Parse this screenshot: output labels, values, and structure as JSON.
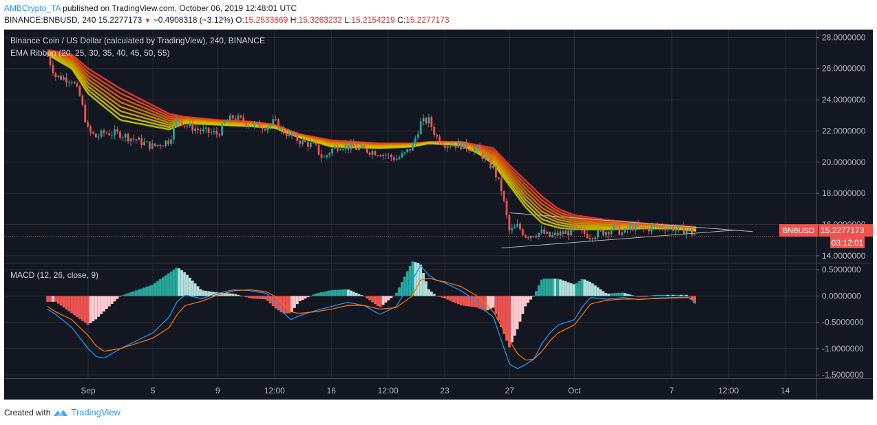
{
  "header": {
    "author": "AMBCrypto_TA",
    "published_text": "published on TradingView.com, October 06, 2019 12:48:01 UTC",
    "symbol": "BINANCE:BNBUSD, 240",
    "last": "15.2277173",
    "change": "−0.4908318 (−3.12%)",
    "o_label": "O:",
    "o": "15.2533869",
    "h_label": "H:",
    "h": "15.3263232",
    "l_label": "L:",
    "l": "15.2154219",
    "c_label": "C:",
    "c": "15.2277173",
    "change_icon": "triangle-down-icon"
  },
  "pane_labels": {
    "main_title": "Binance Coin / US Dollar (calculated by TradingView), 240, BINANCE",
    "ema": "EMA Ribbon (20, 25, 30, 35, 40, 45, 50, 55)",
    "macd": "MACD (12, 26, close, 9)"
  },
  "price_badge": {
    "symbol": "BNBUSD",
    "price": "15.2277173",
    "countdown": "03:12:01"
  },
  "footer": {
    "created_with": "Created with",
    "brand": "TradingView",
    "logo_icon": "tradingview-logo-icon"
  },
  "colors": {
    "background": "#131722",
    "grid": "#2a2e39",
    "text": "#b2b5be",
    "candle_up": "#26a69a",
    "candle_down": "#ef5350",
    "ema_fast": "#d4d400",
    "ema_slow": "#e53935",
    "macd_line": "#2196f3",
    "signal_line": "#ff6d00",
    "hist_up_strong": "#26a69a",
    "hist_up_weak": "#b2dfdb",
    "hist_down_strong": "#ef5350",
    "hist_down_weak": "#ffcdd2",
    "triangle_lines": "#b2b5be",
    "price_line": "#ef5350"
  },
  "chart_data": [
    {
      "type": "candlestick",
      "title": "Binance Coin / US Dollar (calculated by TradingView), 240, BINANCE",
      "timeframe": "240",
      "x_ticks": [
        "Sep",
        "5",
        "9",
        "12:00",
        "16",
        "12:00",
        "23",
        "27",
        "Oct",
        "7",
        "12:00",
        "14"
      ],
      "x_tick_dates": [
        "2019-09-01",
        "2019-09-05",
        "2019-09-09",
        "2019-09-12T12:00",
        "2019-09-16",
        "2019-09-19T12:00",
        "2019-09-23",
        "2019-09-27",
        "2019-10-01",
        "2019-10-07",
        "2019-10-10T12:00",
        "2019-10-14"
      ],
      "ylim": [
        13.6,
        28.5
      ],
      "y_ticks": [
        "28.0000000",
        "26.0000000",
        "24.0000000",
        "22.0000000",
        "20.0000000",
        "18.0000000",
        "16.0000000",
        "14.0000000"
      ],
      "close_path": [
        [
          "2019-08-29T12:00",
          26.8
        ],
        [
          "2019-08-30",
          25.5
        ],
        [
          "2019-08-31",
          25.3
        ],
        [
          "2019-08-31T12:00",
          24.2
        ],
        [
          "2019-09-01",
          22.0
        ],
        [
          "2019-09-01T12:00",
          21.6
        ],
        [
          "2019-09-02",
          21.9
        ],
        [
          "2019-09-03",
          21.8
        ],
        [
          "2019-09-04",
          21.4
        ],
        [
          "2019-09-05",
          21.0
        ],
        [
          "2019-09-06",
          21.4
        ],
        [
          "2019-09-06T12:00",
          22.8
        ],
        [
          "2019-09-07",
          22.4
        ],
        [
          "2019-09-08",
          22.0
        ],
        [
          "2019-09-09",
          21.8
        ],
        [
          "2019-09-09T12:00",
          22.6
        ],
        [
          "2019-09-10",
          22.9
        ],
        [
          "2019-09-11",
          22.4
        ],
        [
          "2019-09-12",
          22.3
        ],
        [
          "2019-09-12T12:00",
          22.6
        ],
        [
          "2019-09-13",
          22.0
        ],
        [
          "2019-09-14",
          21.4
        ],
        [
          "2019-09-15",
          21.0
        ],
        [
          "2019-09-15T12:00",
          20.2
        ],
        [
          "2019-09-16",
          20.8
        ],
        [
          "2019-09-16T12:00",
          21.1
        ],
        [
          "2019-09-17",
          21.0
        ],
        [
          "2019-09-18",
          20.8
        ],
        [
          "2019-09-19",
          20.6
        ],
        [
          "2019-09-20",
          20.2
        ],
        [
          "2019-09-20T12:00",
          20.5
        ],
        [
          "2019-09-21",
          21.0
        ],
        [
          "2019-09-21T12:00",
          22.5
        ],
        [
          "2019-09-22",
          22.7
        ],
        [
          "2019-09-22T12:00",
          21.6
        ],
        [
          "2019-09-23",
          21.2
        ],
        [
          "2019-09-24",
          21.1
        ],
        [
          "2019-09-25",
          20.8
        ],
        [
          "2019-09-25T12:00",
          20.2
        ],
        [
          "2019-09-26",
          19.6
        ],
        [
          "2019-09-26T12:00",
          18.2
        ],
        [
          "2019-09-27",
          15.5
        ],
        [
          "2019-09-27T12:00",
          15.9
        ],
        [
          "2019-09-28",
          15.3
        ],
        [
          "2019-09-29",
          15.5
        ],
        [
          "2019-09-29T12:00",
          15.2
        ],
        [
          "2019-09-30",
          15.4
        ],
        [
          "2019-10-01",
          15.6
        ],
        [
          "2019-10-02",
          15.3
        ],
        [
          "2019-10-03",
          15.6
        ],
        [
          "2019-10-03T12:00",
          15.8
        ],
        [
          "2019-10-04",
          15.4
        ],
        [
          "2019-10-04T12:00",
          15.9
        ],
        [
          "2019-10-05",
          15.7
        ],
        [
          "2019-10-06",
          15.8
        ],
        [
          "2019-10-06T12:00",
          15.9
        ],
        [
          "2019-10-07",
          15.8
        ],
        [
          "2019-10-07T12:00",
          15.7
        ],
        [
          "2019-10-08",
          15.6
        ],
        [
          "2019-10-08T12:00",
          15.3
        ]
      ],
      "ema_ribbon": {
        "periods": [
          20,
          25,
          30,
          35,
          40,
          45,
          50,
          55
        ],
        "fast_path": [
          [
            "2019-08-29T12:00",
            26.9
          ],
          [
            "2019-08-31",
            26.0
          ],
          [
            "2019-09-01",
            24.4
          ],
          [
            "2019-09-03",
            22.7
          ],
          [
            "2019-09-06",
            22.1
          ],
          [
            "2019-09-07",
            22.5
          ],
          [
            "2019-09-09",
            22.4
          ],
          [
            "2019-09-11",
            22.3
          ],
          [
            "2019-09-12T12:00",
            22.2
          ],
          [
            "2019-09-14",
            21.6
          ],
          [
            "2019-09-16",
            21.0
          ],
          [
            "2019-09-19",
            20.9
          ],
          [
            "2019-09-21",
            21.0
          ],
          [
            "2019-09-22",
            21.2
          ],
          [
            "2019-09-24",
            21.1
          ],
          [
            "2019-09-25",
            20.6
          ],
          [
            "2019-09-26",
            19.9
          ],
          [
            "2019-09-27",
            18.5
          ],
          [
            "2019-09-28",
            17.1
          ],
          [
            "2019-09-29",
            16.1
          ],
          [
            "2019-09-30",
            15.8
          ],
          [
            "2019-10-01",
            15.7
          ],
          [
            "2019-10-03",
            15.7
          ],
          [
            "2019-10-05",
            15.75
          ],
          [
            "2019-10-07",
            15.75
          ],
          [
            "2019-10-08T12:00",
            15.6
          ]
        ],
        "slow_path": [
          [
            "2019-08-29T12:00",
            27.2
          ],
          [
            "2019-08-31",
            26.9
          ],
          [
            "2019-09-01",
            26.0
          ],
          [
            "2019-09-03",
            24.7
          ],
          [
            "2019-09-06",
            23.1
          ],
          [
            "2019-09-07",
            22.9
          ],
          [
            "2019-09-09",
            22.7
          ],
          [
            "2019-09-11",
            22.6
          ],
          [
            "2019-09-12T12:00",
            22.4
          ],
          [
            "2019-09-14",
            21.8
          ],
          [
            "2019-09-16",
            21.4
          ],
          [
            "2019-09-19",
            21.2
          ],
          [
            "2019-09-21",
            21.2
          ],
          [
            "2019-09-22",
            21.3
          ],
          [
            "2019-09-24",
            21.3
          ],
          [
            "2019-09-25",
            21.1
          ],
          [
            "2019-09-26",
            20.9
          ],
          [
            "2019-09-27",
            19.8
          ],
          [
            "2019-09-28",
            18.8
          ],
          [
            "2019-09-29",
            17.8
          ],
          [
            "2019-09-30",
            17.0
          ],
          [
            "2019-10-01",
            16.6
          ],
          [
            "2019-10-03",
            16.3
          ],
          [
            "2019-10-05",
            16.1
          ],
          [
            "2019-10-07",
            15.95
          ],
          [
            "2019-10-08T12:00",
            15.85
          ]
        ]
      },
      "triangle": {
        "upper": [
          [
            "2019-09-27",
            16.75
          ],
          [
            "2019-10-12",
            15.55
          ]
        ],
        "lower": [
          [
            "2019-09-26T12:00",
            14.5
          ],
          [
            "2019-10-11",
            15.65
          ]
        ]
      },
      "last_price": 15.2277173
    },
    {
      "type": "macd",
      "title": "MACD (12, 26, close, 9)",
      "ylim": [
        -1.55,
        0.62
      ],
      "y_ticks": [
        "0.5000000",
        "0.0000000",
        "-0.5000000",
        "-1.0000000",
        "-1.5000000"
      ],
      "macd": [
        [
          "2019-08-29T12:00",
          -0.25
        ],
        [
          "2019-08-30",
          -0.35
        ],
        [
          "2019-08-31",
          -0.6
        ],
        [
          "2019-09-01",
          -1.0
        ],
        [
          "2019-09-01T12:00",
          -1.15
        ],
        [
          "2019-09-02",
          -1.18
        ],
        [
          "2019-09-03",
          -1.0
        ],
        [
          "2019-09-04",
          -0.85
        ],
        [
          "2019-09-05",
          -0.7
        ],
        [
          "2019-09-06",
          -0.4
        ],
        [
          "2019-09-06T12:00",
          -0.1
        ],
        [
          "2019-09-07",
          0.02
        ],
        [
          "2019-09-08",
          -0.05
        ],
        [
          "2019-09-09",
          0.05
        ],
        [
          "2019-09-10",
          0.12
        ],
        [
          "2019-09-11",
          0.1
        ],
        [
          "2019-09-12",
          0.05
        ],
        [
          "2019-09-12T12:00",
          -0.1
        ],
        [
          "2019-09-13",
          -0.3
        ],
        [
          "2019-09-13T12:00",
          -0.45
        ],
        [
          "2019-09-14",
          -0.38
        ],
        [
          "2019-09-15",
          -0.28
        ],
        [
          "2019-09-16",
          -0.2
        ],
        [
          "2019-09-17",
          -0.12
        ],
        [
          "2019-09-18",
          -0.18
        ],
        [
          "2019-09-19",
          -0.35
        ],
        [
          "2019-09-20",
          -0.2
        ],
        [
          "2019-09-21",
          0.3
        ],
        [
          "2019-09-21T12:00",
          0.58
        ],
        [
          "2019-09-22",
          0.4
        ],
        [
          "2019-09-22T12:00",
          0.3
        ],
        [
          "2019-09-23",
          0.25
        ],
        [
          "2019-09-24",
          0.1
        ],
        [
          "2019-09-25",
          -0.1
        ],
        [
          "2019-09-25T12:00",
          -0.28
        ],
        [
          "2019-09-26",
          -0.4
        ],
        [
          "2019-09-27",
          -1.3
        ],
        [
          "2019-09-27T12:00",
          -1.38
        ],
        [
          "2019-09-28",
          -1.3
        ],
        [
          "2019-09-28T12:00",
          -1.2
        ],
        [
          "2019-09-29",
          -0.9
        ],
        [
          "2019-09-29T12:00",
          -0.7
        ],
        [
          "2019-09-30",
          -0.55
        ],
        [
          "2019-10-01",
          -0.45
        ],
        [
          "2019-10-01T12:00",
          -0.2
        ],
        [
          "2019-10-02",
          -0.03
        ],
        [
          "2019-10-03",
          -0.06
        ],
        [
          "2019-10-04",
          -0.03
        ],
        [
          "2019-10-05",
          -0.07
        ],
        [
          "2019-10-06",
          -0.04
        ],
        [
          "2019-10-07",
          -0.03
        ],
        [
          "2019-10-08",
          -0.02
        ],
        [
          "2019-10-08T12:00",
          -0.14
        ]
      ],
      "signal": [
        [
          "2019-08-29T12:00",
          -0.2
        ],
        [
          "2019-08-30",
          -0.3
        ],
        [
          "2019-08-31",
          -0.45
        ],
        [
          "2019-09-01",
          -0.75
        ],
        [
          "2019-09-01T12:00",
          -0.95
        ],
        [
          "2019-09-02",
          -1.05
        ],
        [
          "2019-09-03",
          -1.0
        ],
        [
          "2019-09-04",
          -0.9
        ],
        [
          "2019-09-05",
          -0.8
        ],
        [
          "2019-09-06",
          -0.6
        ],
        [
          "2019-09-06T12:00",
          -0.35
        ],
        [
          "2019-09-07",
          -0.18
        ],
        [
          "2019-09-08",
          -0.1
        ],
        [
          "2019-09-09",
          0.02
        ],
        [
          "2019-09-10",
          0.1
        ],
        [
          "2019-09-11",
          0.12
        ],
        [
          "2019-09-12",
          0.08
        ],
        [
          "2019-09-12T12:00",
          0.0
        ],
        [
          "2019-09-13",
          -0.15
        ],
        [
          "2019-09-13T12:00",
          -0.3
        ],
        [
          "2019-09-14",
          -0.33
        ],
        [
          "2019-09-15",
          -0.3
        ],
        [
          "2019-09-16",
          -0.25
        ],
        [
          "2019-09-17",
          -0.18
        ],
        [
          "2019-09-18",
          -0.18
        ],
        [
          "2019-09-19",
          -0.25
        ],
        [
          "2019-09-20",
          -0.22
        ],
        [
          "2019-09-21",
          0.0
        ],
        [
          "2019-09-21T12:00",
          0.3
        ],
        [
          "2019-09-22",
          0.34
        ],
        [
          "2019-09-22T12:00",
          0.3
        ],
        [
          "2019-09-23",
          0.27
        ],
        [
          "2019-09-24",
          0.18
        ],
        [
          "2019-09-25",
          0.0
        ],
        [
          "2019-09-25T12:00",
          -0.15
        ],
        [
          "2019-09-26",
          -0.3
        ],
        [
          "2019-09-27",
          -0.85
        ],
        [
          "2019-09-27T12:00",
          -1.1
        ],
        [
          "2019-09-28",
          -1.22
        ],
        [
          "2019-09-28T12:00",
          -1.2
        ],
        [
          "2019-09-29",
          -1.05
        ],
        [
          "2019-09-29T12:00",
          -0.85
        ],
        [
          "2019-09-30",
          -0.7
        ],
        [
          "2019-10-01",
          -0.55
        ],
        [
          "2019-10-01T12:00",
          -0.35
        ],
        [
          "2019-10-02",
          -0.15
        ],
        [
          "2019-10-03",
          -0.08
        ],
        [
          "2019-10-04",
          -0.06
        ],
        [
          "2019-10-05",
          -0.06
        ],
        [
          "2019-10-06",
          -0.05
        ],
        [
          "2019-10-07",
          -0.04
        ],
        [
          "2019-10-08",
          -0.03
        ],
        [
          "2019-10-08T12:00",
          -0.06
        ]
      ],
      "histogram_note": "histogram = macd - signal (scaled ×2.2 in display)"
    }
  ]
}
